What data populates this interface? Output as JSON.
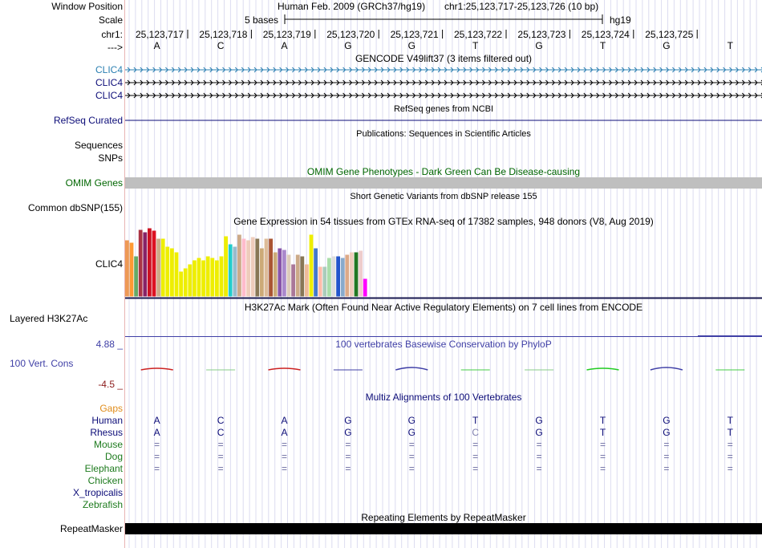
{
  "window_position": {
    "label": "Window Position",
    "assembly": "Human Feb. 2009 (GRCh37/hg19)",
    "coords": "chr1:25,123,717-25,123,726 (10 bp)"
  },
  "scale": {
    "label": "Scale",
    "text": "5 bases",
    "db": "hg19"
  },
  "ruler": {
    "label": "chr1:",
    "ticks": [
      "25,123,717",
      "25,123,718",
      "25,123,719",
      "25,123,720",
      "25,123,721",
      "25,123,722",
      "25,123,723",
      "25,123,724",
      "25,123,725"
    ]
  },
  "sequence": {
    "label": "--->",
    "bases": [
      "A",
      "C",
      "A",
      "G",
      "G",
      "T",
      "G",
      "T",
      "G",
      "T"
    ]
  },
  "gencode": {
    "title": "GENCODE V49lift37 (3 items filtered out)",
    "items": [
      "CLIC4",
      "CLIC4",
      "CLIC4"
    ],
    "color": "#2a7fb1"
  },
  "refseq": {
    "title": "RefSeq genes from NCBI",
    "label": "RefSeq Curated",
    "color": "#0c0c78"
  },
  "publications": {
    "title": "Publications: Sequences in Scientific Articles",
    "labels": [
      "Sequences",
      "SNPs"
    ]
  },
  "omim": {
    "title": "OMIM Gene Phenotypes - Dark Green Can Be Disease-causing",
    "label": "OMIM Genes",
    "color": "#006600"
  },
  "dbsnp": {
    "title": "Short Genetic Variants from dbSNP release 155",
    "label": "Common dbSNP(155)"
  },
  "gtex": {
    "title": "Gene Expression in 54 tissues from GTEx RNA-seq of 17382 samples, 948 donors (V8, Aug 2019)",
    "label": "CLIC4"
  },
  "h3k27ac": {
    "title": "H3K27Ac Mark (Often Found Near Active Regulatory Elements) on 7 cell lines from ENCODE",
    "label": "Layered H3K27Ac"
  },
  "phylop": {
    "title": "100 vertebrates Basewise Conservation by PhyloP",
    "label": "100 Vert. Cons",
    "max": "4.88 _",
    "min": "-4.5 _",
    "color": "#3f3fa6"
  },
  "multiz": {
    "title": "Multiz Alignments of 100 Vertebrates",
    "gaps_label": "Gaps",
    "species": [
      {
        "name": "Human",
        "color": "#0c0c78",
        "bases": [
          "A",
          "C",
          "A",
          "G",
          "G",
          "T",
          "G",
          "T",
          "G",
          "T"
        ]
      },
      {
        "name": "Rhesus",
        "color": "#0c0c78",
        "bases": [
          "A",
          "C",
          "A",
          "G",
          "G",
          "C",
          "G",
          "T",
          "G",
          "T"
        ]
      },
      {
        "name": "Mouse",
        "color": "#1d7a1d",
        "bases": [
          "=",
          "=",
          "=",
          "=",
          "=",
          "=",
          "=",
          "=",
          "=",
          "="
        ]
      },
      {
        "name": "Dog",
        "color": "#1d7a1d",
        "bases": [
          "=",
          "=",
          "=",
          "=",
          "=",
          "=",
          "=",
          "=",
          "=",
          "="
        ]
      },
      {
        "name": "Elephant",
        "color": "#1d7a1d",
        "bases": [
          "=",
          "=",
          "=",
          "=",
          "=",
          "=",
          "=",
          "=",
          "=",
          "="
        ]
      },
      {
        "name": "Chicken",
        "color": "#1d7a1d",
        "bases": []
      },
      {
        "name": "X_tropicalis",
        "color": "#0c0c78",
        "bases": []
      },
      {
        "name": "Zebrafish",
        "color": "#1d7a1d",
        "bases": []
      }
    ]
  },
  "repeatmasker": {
    "title": "Repeating Elements by RepeatMasker",
    "label": "RepeatMasker"
  },
  "chart_data": {
    "type": "bar",
    "title": "Gene Expression in 54 tissues from GTEx RNA-seq of 17382 samples, 948 donors (V8, Aug 2019)",
    "xlabel": "",
    "ylabel": "",
    "ylim": [
      0,
      85
    ],
    "values": [
      70,
      67,
      50,
      83,
      80,
      85,
      82,
      72,
      72,
      62,
      60,
      55,
      31,
      35,
      40,
      45,
      48,
      45,
      50,
      48,
      45,
      50,
      75,
      65,
      62,
      77,
      72,
      70,
      74,
      72,
      60,
      72,
      72,
      55,
      60,
      58,
      52,
      40,
      52,
      50,
      40,
      77,
      60,
      37,
      37,
      48,
      50,
      50,
      48,
      52,
      55,
      55,
      57,
      22
    ],
    "colors": [
      "#ee9955",
      "#ff9933",
      "#66aa66",
      "#aa3344",
      "#882266",
      "#cc1122",
      "#dd1122",
      "#ccaa88",
      "#eeee00",
      "#eeee00",
      "#eeee00",
      "#eeee00",
      "#eeee00",
      "#eeee00",
      "#eeee00",
      "#eeee00",
      "#eeee00",
      "#eeee00",
      "#eeee00",
      "#eeee00",
      "#eeee00",
      "#eeee00",
      "#eeee00",
      "#22cccc",
      "#99bbcc",
      "#ccaa88",
      "#ffbbcc",
      "#eeccbb",
      "#eeccbb",
      "#887755",
      "#ccaa77",
      "#ddbb99",
      "#aa5533",
      "#ccaa77",
      "#8855aa",
      "#aa88cc",
      "#ddccbb",
      "#aa7799",
      "#ccaa88",
      "#887755",
      "#eebb99",
      "#eeee00",
      "#4477cc",
      "#ffbbaa",
      "#aaccbb",
      "#aaddaa",
      "#dddddd",
      "#2255cc",
      "#88aacc",
      "#ddaa88",
      "#eeccbb",
      "#227722",
      "#eecccc",
      "#ff00ff"
    ]
  }
}
